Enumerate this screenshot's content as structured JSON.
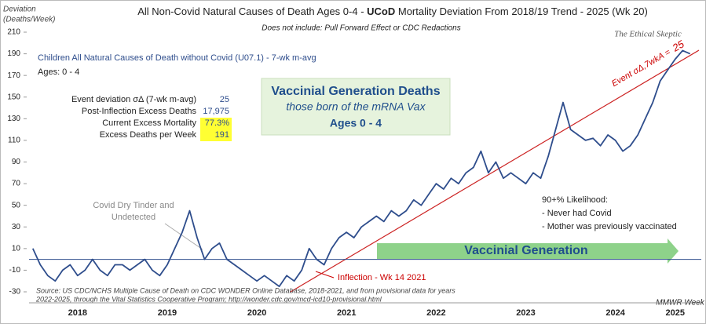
{
  "chart_data": {
    "type": "line",
    "title_prefix": "All Non-Covid Natural Causes of Death Ages 0-4 - ",
    "title_bold": "UCoD",
    "title_suffix": " Mortality Deviation From 2018/19 Trend - 2025 (Wk 20)",
    "subtitle": "Does not include: Pull Forward Effect or CDC Redactions",
    "watermark": "The Ethical Skeptic",
    "y_label_1": "Deviation",
    "y_label_2": "(Deaths/Week)",
    "x_label": "MMWR Week",
    "ages": "Ages: 0 - 4",
    "stats": [
      {
        "label": "Event deviation σΔ (7-wk m-avg)",
        "value": "25"
      },
      {
        "label": "Post-Inflection Excess Deaths",
        "value": "17,975"
      },
      {
        "label": "Current Excess Mortality",
        "value": "77.3%"
      },
      {
        "label": "Excess Deaths per Week",
        "value": "191"
      }
    ],
    "box": {
      "title": "Vaccinial Generation Deaths",
      "subtitle": "those born of the mRNA Vax",
      "ages": "Ages 0 - 4"
    },
    "annotations": {
      "tinder_1": "Covid Dry Tinder and",
      "tinder_2": "Undetected",
      "inflection": "Inflection - Wk 14 2021",
      "event": "Event σΔ,7wkA =",
      "event_value": "25",
      "likelihood": "90+% Likelihood:",
      "bullet_1": "- Never had Covid",
      "bullet_2": "- Mother was previously vaccinated",
      "arrow": "Vaccinial Generation"
    },
    "source_1": "Source: US CDC/NCHS Multiple Cause of Death on CDC WONDER Online Database, 2018-2021, and from provisional data for years",
    "source_2": "2022-2025, through the Vital Statistics Cooperative Program; http://wonder.cdc.gov/mcd-icd10-provisional.html",
    "categories": [
      null,
      null,
      null,
      null,
      null,
      null,
      "2018",
      null,
      null,
      null,
      null,
      null,
      null,
      null,
      null,
      null,
      null,
      null,
      "2019",
      null,
      null,
      null,
      null,
      null,
      null,
      null,
      null,
      null,
      null,
      null,
      "2020",
      null,
      null,
      null,
      null,
      null,
      null,
      null,
      null,
      null,
      null,
      null,
      "2021",
      null,
      null,
      null,
      null,
      null,
      null,
      null,
      null,
      null,
      null,
      null,
      "2022",
      null,
      null,
      null,
      null,
      null,
      null,
      null,
      null,
      null,
      null,
      null,
      "2023",
      null,
      null,
      null,
      null,
      null,
      null,
      null,
      null,
      null,
      null,
      null,
      "2024",
      null,
      null,
      null,
      null,
      null,
      null,
      null,
      "2025",
      null,
      null
    ],
    "series": [
      {
        "name": "Children All Natural Causes of Death without Covid (U07.1) - 7-wk m-avg",
        "color": "#2e4d8c",
        "values": [
          10,
          -5,
          -15,
          -20,
          -10,
          -5,
          -15,
          -10,
          0,
          -10,
          -15,
          -5,
          -5,
          -10,
          -5,
          0,
          -10,
          -15,
          -5,
          10,
          25,
          45,
          20,
          0,
          10,
          15,
          0,
          -5,
          -10,
          -15,
          -20,
          -15,
          -20,
          -25,
          -15,
          -20,
          -10,
          10,
          0,
          -5,
          10,
          20,
          25,
          20,
          30,
          35,
          40,
          35,
          45,
          40,
          45,
          55,
          50,
          60,
          70,
          65,
          75,
          70,
          80,
          85,
          100,
          80,
          90,
          75,
          80,
          75,
          70,
          80,
          75,
          95,
          120,
          145,
          120,
          115,
          110,
          112,
          105,
          115,
          110,
          100,
          105,
          115,
          130,
          145,
          165,
          175,
          185,
          193,
          190
        ]
      }
    ],
    "ylim": [
      -30,
      210
    ],
    "yticks": [
      -30,
      -10,
      10,
      30,
      50,
      70,
      90,
      110,
      130,
      150,
      170,
      190,
      210
    ],
    "grid": false
  }
}
